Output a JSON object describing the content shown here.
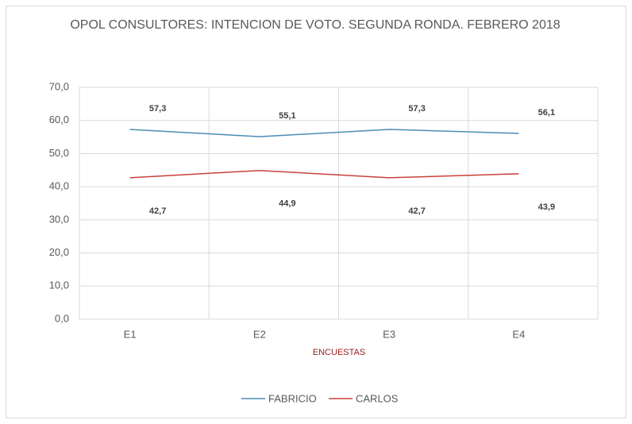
{
  "chart_data": {
    "type": "line",
    "title": "OPOL CONSULTORES: INTENCION DE VOTO. SEGUNDA RONDA. FEBRERO 2018",
    "x_label": "ENCUESTAS",
    "categories": [
      "E1",
      "E2",
      "E3",
      "E4"
    ],
    "series": [
      {
        "name": "FABRICIO",
        "color": "#4a8cb3",
        "values": [
          57.3,
          55.1,
          57.3,
          56.1
        ],
        "value_labels": [
          "57,3",
          "55,1",
          "57,3",
          "56,1"
        ]
      },
      {
        "name": "CARLOS",
        "color": "#c9403a",
        "values": [
          42.7,
          44.9,
          42.7,
          43.9
        ],
        "value_labels": [
          "42,7",
          "44,9",
          "42,7",
          "43,9"
        ]
      }
    ],
    "ylim": [
      0,
      70
    ],
    "yticks": [
      {
        "value": 0,
        "label": "0,0"
      },
      {
        "value": 10,
        "label": "10,0"
      },
      {
        "value": 20,
        "label": "20,0"
      },
      {
        "value": 30,
        "label": "30,0"
      },
      {
        "value": 40,
        "label": "40,0"
      },
      {
        "value": 50,
        "label": "50,0"
      },
      {
        "value": 60,
        "label": "60,0"
      },
      {
        "value": 70,
        "label": "70,0"
      }
    ],
    "grid": true,
    "legend": "bottom"
  }
}
